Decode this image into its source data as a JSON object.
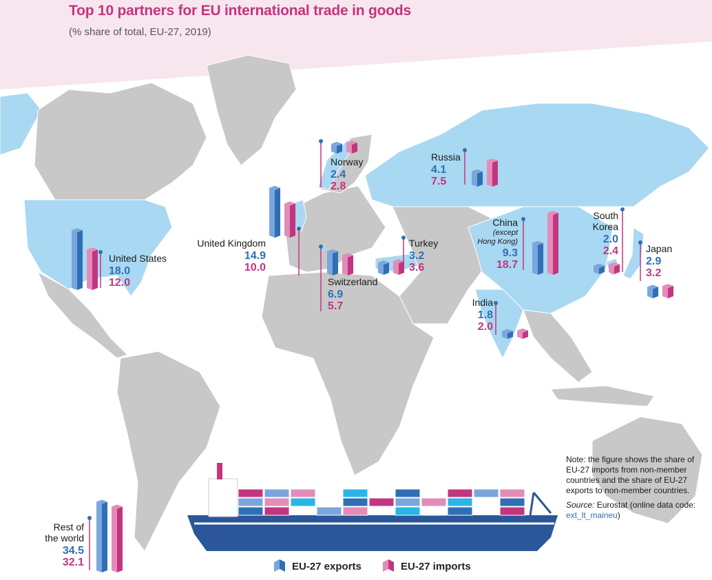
{
  "colors": {
    "exports": "#2f6fb6",
    "exports_light": "#7aa6dc",
    "imports": "#c2357f",
    "imports_light": "#e38cb9",
    "land": "#c8c8c8",
    "highlight_land": "#a9d8f2",
    "title": "#c2357f",
    "band": "#f7e6ee"
  },
  "header": {
    "title": "Top 10 partners for EU international trade in goods",
    "subtitle": "(% share of total, EU-27, 2019)"
  },
  "legend": {
    "exports_label": "EU-27 exports",
    "imports_label": "EU-27 imports"
  },
  "note": {
    "text": "Note: the figure shows the share of EU-27 imports from non-member countries and the share of EU-27 exports to non-member countries.",
    "source_label": "Source:",
    "source_text": "Eurostat (online data code:",
    "data_code": "ext_lt_maineu",
    "source_close": ")"
  },
  "chart_data": {
    "type": "bar",
    "title": "Top 10 partners for EU international trade in goods",
    "subtitle": "(% share of total, EU-27, 2019)",
    "categories": [
      "United States",
      "United Kingdom",
      "Switzerland",
      "Norway",
      "Russia",
      "Turkey",
      "China",
      "India",
      "South Korea",
      "Japan",
      "Rest of the world"
    ],
    "series": [
      {
        "name": "EU-27 exports",
        "values": [
          18.0,
          14.9,
          6.9,
          2.4,
          4.1,
          3.2,
          9.3,
          1.8,
          2.0,
          2.9,
          34.5
        ]
      },
      {
        "name": "EU-27 imports",
        "values": [
          12.0,
          10.0,
          5.7,
          2.8,
          7.5,
          3.6,
          18.7,
          2.0,
          2.4,
          3.2,
          32.1
        ]
      }
    ],
    "unit": "%",
    "legend_position": "bottom-center"
  },
  "partners": [
    {
      "id": "united-states",
      "name_lines": [
        "United States"
      ],
      "sub": "",
      "exports": "18.0",
      "imports": "12.0"
    },
    {
      "id": "united-kingdom",
      "name_lines": [
        "United Kingdom"
      ],
      "sub": "",
      "exports": "14.9",
      "imports": "10.0"
    },
    {
      "id": "switzerland",
      "name_lines": [
        "Switzerland"
      ],
      "sub": "",
      "exports": "6.9",
      "imports": "5.7"
    },
    {
      "id": "norway",
      "name_lines": [
        "Norway"
      ],
      "sub": "",
      "exports": "2.4",
      "imports": "2.8"
    },
    {
      "id": "russia",
      "name_lines": [
        "Russia"
      ],
      "sub": "",
      "exports": "4.1",
      "imports": "7.5"
    },
    {
      "id": "turkey",
      "name_lines": [
        "Turkey"
      ],
      "sub": "",
      "exports": "3.2",
      "imports": "3.6"
    },
    {
      "id": "china",
      "name_lines": [
        "China"
      ],
      "sub": "(except Hong Kong)",
      "exports": "9.3",
      "imports": "18.7"
    },
    {
      "id": "india",
      "name_lines": [
        "India"
      ],
      "sub": "",
      "exports": "1.8",
      "imports": "2.0"
    },
    {
      "id": "south-korea",
      "name_lines": [
        "South",
        "Korea"
      ],
      "sub": "",
      "exports": "2.0",
      "imports": "2.4"
    },
    {
      "id": "japan",
      "name_lines": [
        "Japan"
      ],
      "sub": "",
      "exports": "2.9",
      "imports": "3.2"
    },
    {
      "id": "rest-of-world",
      "name_lines": [
        "Rest of",
        "the world"
      ],
      "sub": "",
      "exports": "34.5",
      "imports": "32.1"
    }
  ]
}
